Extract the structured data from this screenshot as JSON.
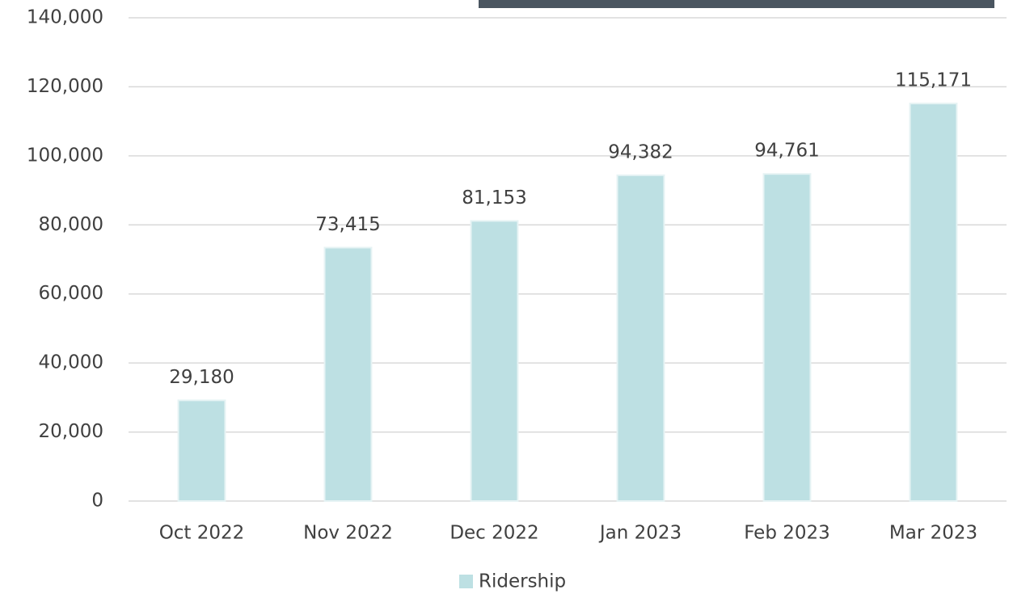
{
  "chart_data": {
    "type": "bar",
    "categories": [
      "Oct 2022",
      "Nov 2022",
      "Dec 2022",
      "Jan 2023",
      "Feb 2023",
      "Mar 2023"
    ],
    "series": [
      {
        "name": "Ridership",
        "color": "#bde0e3",
        "values": [
          29180,
          73415,
          81153,
          94382,
          94761,
          115171
        ],
        "value_labels": [
          "29,180",
          "73,415",
          "81,153",
          "94,382",
          "94,761",
          "115,171"
        ]
      }
    ],
    "ylim": [
      0,
      140000
    ],
    "yticks": [
      0,
      {
        "value": 20000,
        "label": "20,000"
      },
      {
        "value": 40000,
        "label": "40,000"
      },
      {
        "value": 60000,
        "label": "60,000"
      },
      {
        "value": 80000,
        "label": "80,000"
      },
      {
        "value": 100000,
        "label": "100,000"
      },
      {
        "value": 120000,
        "label": "120,000"
      },
      {
        "value": 140000,
        "label": "140,000"
      }
    ],
    "grid": true,
    "legend": "bottom"
  }
}
